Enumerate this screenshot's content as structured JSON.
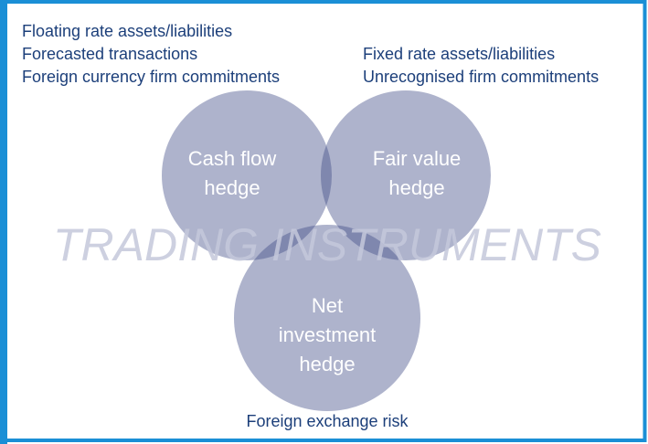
{
  "top_left": {
    "lines": [
      "Floating rate assets/liabilities",
      "Forecasted transactions",
      "Foreign currency firm commitments"
    ]
  },
  "top_right": {
    "lines": [
      "Fixed rate assets/liabilities",
      "Unrecognised firm commitments"
    ]
  },
  "circles": [
    {
      "lines": [
        "Cash flow",
        "hedge"
      ]
    },
    {
      "lines": [
        "Fair value",
        "hedge"
      ]
    },
    {
      "lines": [
        "Net",
        "investment",
        "hedge"
      ]
    }
  ],
  "watermark": "TRADING INSTRUMENTS",
  "bottom_label": "Foreign exchange risk"
}
